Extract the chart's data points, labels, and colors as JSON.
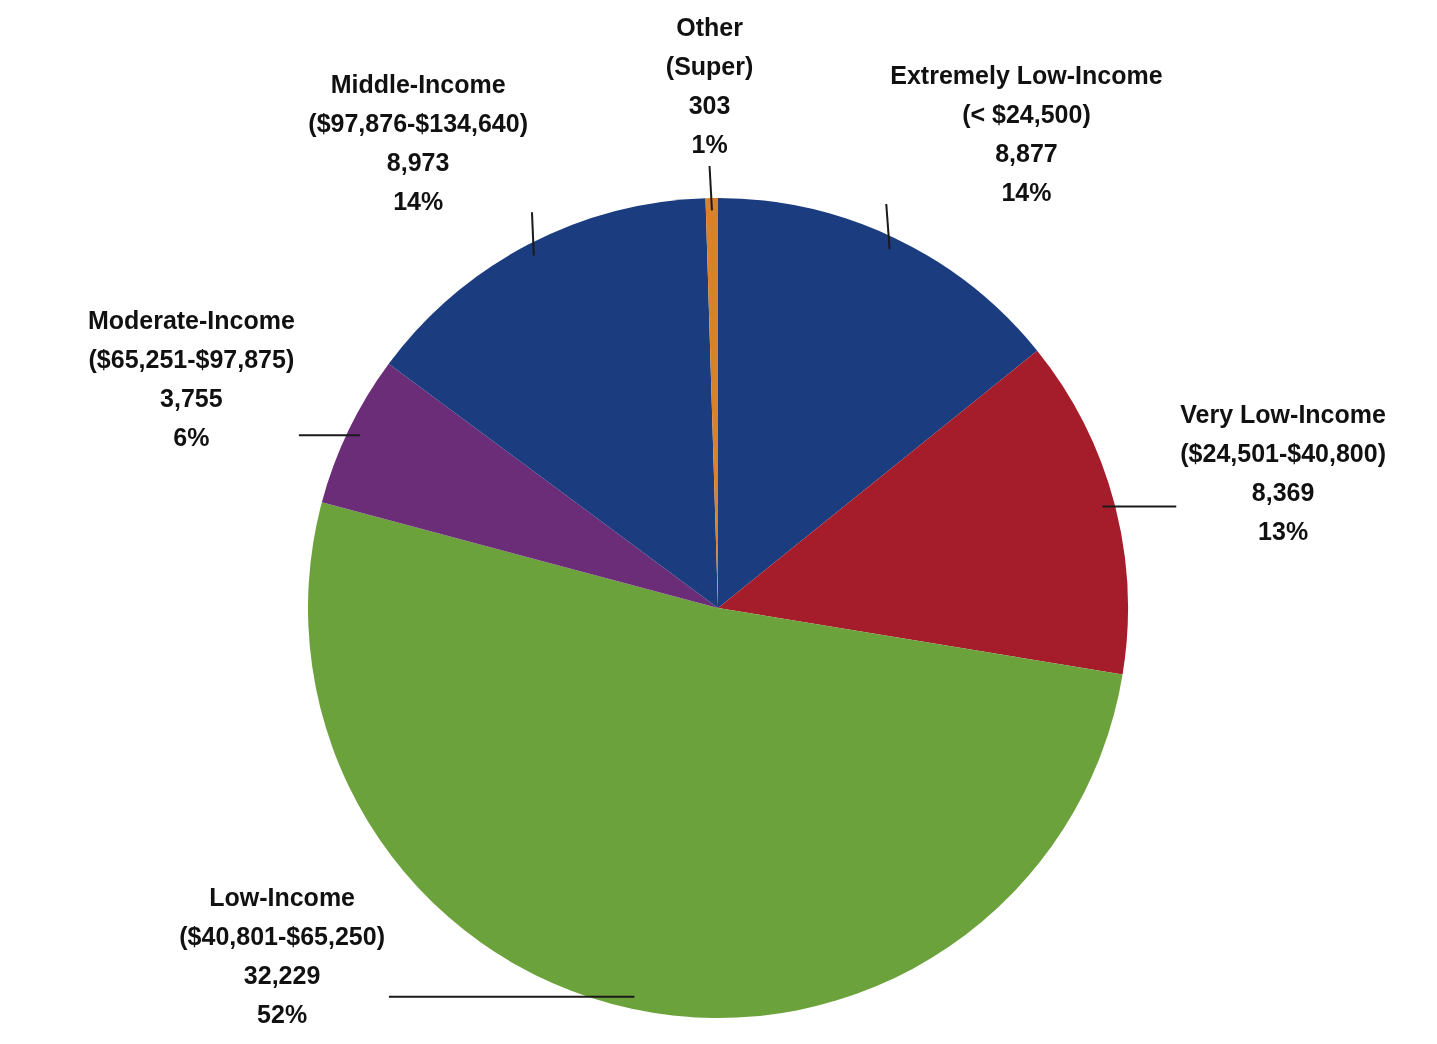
{
  "chart_data": {
    "type": "pie",
    "categories": [
      "Extremely Low-Income\n(< $24,500)",
      "Very Low-Income\n($24,501-$40,800)",
      "Low-Income\n($40,801-$65,250)",
      "Moderate-Income\n($65,251-$97,875)",
      "Middle-Income\n($97,876-$134,640)",
      "Other\n(Super)"
    ],
    "values": [
      8877,
      8369,
      32229,
      3755,
      8973,
      303
    ],
    "value_labels": [
      "8,877\n14%",
      "8,369\n13%",
      "32,229\n52%",
      "3,755\n6%",
      "8,973\n14%",
      "303\n1%"
    ],
    "colors": [
      "#1c3c80",
      "#a51d2b",
      "#6ca23c",
      "#6b2d78",
      "#1c3c80",
      "#d9822b"
    ],
    "legend": false
  }
}
